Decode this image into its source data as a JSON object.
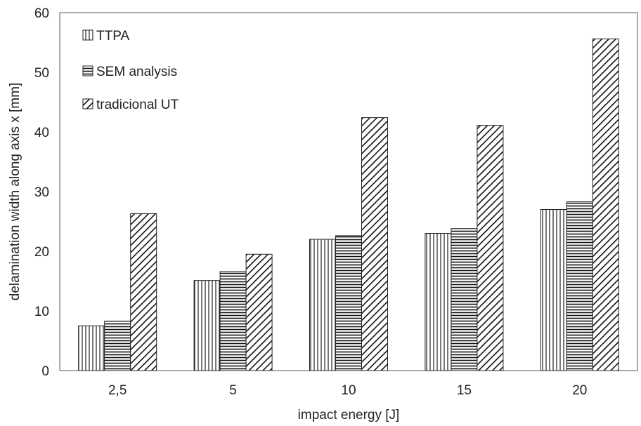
{
  "chart_data": {
    "type": "bar",
    "categories": [
      "2,5",
      "5",
      "10",
      "15",
      "20"
    ],
    "series": [
      {
        "name": "TTPA",
        "values": [
          7.5,
          15.1,
          22.0,
          23.0,
          27.0
        ],
        "pattern": "vertical"
      },
      {
        "name": "SEM analysis",
        "values": [
          8.3,
          16.6,
          22.6,
          23.8,
          28.3
        ],
        "pattern": "horizontal"
      },
      {
        "name": "tradicional UT",
        "values": [
          26.3,
          19.5,
          42.4,
          41.1,
          55.6
        ],
        "pattern": "diagonal"
      }
    ],
    "title": "",
    "xlabel": "impact energy [J]",
    "ylabel": "delamination width along axis x [mm]",
    "ylim": [
      0,
      60
    ],
    "yticks": [
      "0",
      "10",
      "20",
      "30",
      "40",
      "50",
      "60"
    ],
    "grid": false,
    "legend_position": "top-left inside"
  }
}
